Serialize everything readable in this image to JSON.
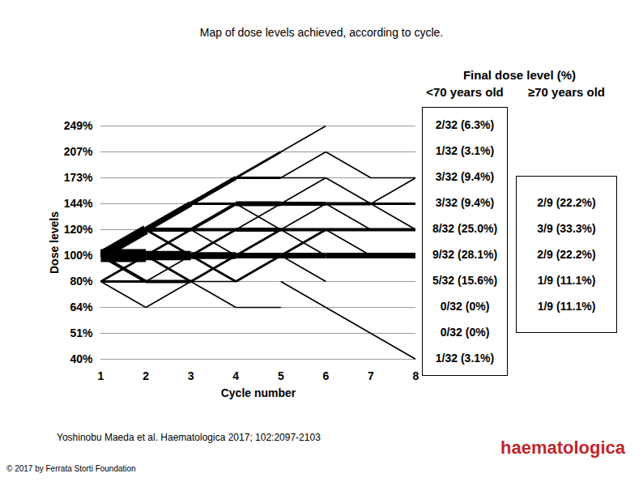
{
  "chart_data": {
    "type": "line",
    "title": "Map of dose levels achieved, according to cycle.",
    "x_label": "Cycle number",
    "y_label": "Dose levels",
    "xlim": [
      1,
      8
    ],
    "xticks": [
      1,
      2,
      3,
      4,
      5,
      6,
      7,
      8
    ],
    "yticks": [
      {
        "value": 249,
        "label": "249%"
      },
      {
        "value": 207,
        "label": "207%"
      },
      {
        "value": 173,
        "label": "173%"
      },
      {
        "value": 144,
        "label": "144%"
      },
      {
        "value": 120,
        "label": "120%"
      },
      {
        "value": 100,
        "label": "100%"
      },
      {
        "value": 80,
        "label": "80%"
      },
      {
        "value": 64,
        "label": "64%"
      },
      {
        "value": 51,
        "label": "51%"
      },
      {
        "value": 40,
        "label": "40%"
      }
    ],
    "grid": true,
    "color": "#000000",
    "transitions": [
      {
        "from_cycle": 1,
        "to_cycle": 2,
        "from": 100,
        "to": 120,
        "n": 10
      },
      {
        "from_cycle": 1,
        "to_cycle": 2,
        "from": 100,
        "to": 100,
        "n": 14
      },
      {
        "from_cycle": 1,
        "to_cycle": 2,
        "from": 100,
        "to": 80,
        "n": 3
      },
      {
        "from_cycle": 1,
        "to_cycle": 2,
        "from": 80,
        "to": 100,
        "n": 2
      },
      {
        "from_cycle": 1,
        "to_cycle": 2,
        "from": 80,
        "to": 80,
        "n": 2
      },
      {
        "from_cycle": 1,
        "to_cycle": 2,
        "from": 80,
        "to": 64,
        "n": 1
      },
      {
        "from_cycle": 2,
        "to_cycle": 3,
        "from": 120,
        "to": 144,
        "n": 6
      },
      {
        "from_cycle": 2,
        "to_cycle": 3,
        "from": 120,
        "to": 120,
        "n": 4
      },
      {
        "from_cycle": 2,
        "to_cycle": 3,
        "from": 120,
        "to": 100,
        "n": 2
      },
      {
        "from_cycle": 2,
        "to_cycle": 3,
        "from": 100,
        "to": 120,
        "n": 2
      },
      {
        "from_cycle": 2,
        "to_cycle": 3,
        "from": 100,
        "to": 100,
        "n": 10
      },
      {
        "from_cycle": 2,
        "to_cycle": 3,
        "from": 100,
        "to": 80,
        "n": 2
      },
      {
        "from_cycle": 2,
        "to_cycle": 3,
        "from": 80,
        "to": 80,
        "n": 3
      },
      {
        "from_cycle": 2,
        "to_cycle": 3,
        "from": 80,
        "to": 100,
        "n": 1
      },
      {
        "from_cycle": 2,
        "to_cycle": 3,
        "from": 64,
        "to": 80,
        "n": 1
      },
      {
        "from_cycle": 3,
        "to_cycle": 4,
        "from": 144,
        "to": 173,
        "n": 4
      },
      {
        "from_cycle": 3,
        "to_cycle": 4,
        "from": 144,
        "to": 144,
        "n": 2
      },
      {
        "from_cycle": 3,
        "to_cycle": 4,
        "from": 120,
        "to": 144,
        "n": 3
      },
      {
        "from_cycle": 3,
        "to_cycle": 4,
        "from": 120,
        "to": 120,
        "n": 3
      },
      {
        "from_cycle": 3,
        "to_cycle": 4,
        "from": 120,
        "to": 100,
        "n": 1
      },
      {
        "from_cycle": 3,
        "to_cycle": 4,
        "from": 100,
        "to": 120,
        "n": 2
      },
      {
        "from_cycle": 3,
        "to_cycle": 4,
        "from": 100,
        "to": 100,
        "n": 7
      },
      {
        "from_cycle": 3,
        "to_cycle": 4,
        "from": 100,
        "to": 80,
        "n": 2
      },
      {
        "from_cycle": 3,
        "to_cycle": 4,
        "from": 80,
        "to": 100,
        "n": 2
      },
      {
        "from_cycle": 3,
        "to_cycle": 4,
        "from": 80,
        "to": 80,
        "n": 1
      },
      {
        "from_cycle": 3,
        "to_cycle": 4,
        "from": 80,
        "to": 64,
        "n": 1
      },
      {
        "from_cycle": 4,
        "to_cycle": 5,
        "from": 173,
        "to": 207,
        "n": 2
      },
      {
        "from_cycle": 4,
        "to_cycle": 5,
        "from": 173,
        "to": 173,
        "n": 2
      },
      {
        "from_cycle": 4,
        "to_cycle": 5,
        "from": 144,
        "to": 144,
        "n": 5
      },
      {
        "from_cycle": 4,
        "to_cycle": 5,
        "from": 144,
        "to": 120,
        "n": 1
      },
      {
        "from_cycle": 4,
        "to_cycle": 5,
        "from": 120,
        "to": 120,
        "n": 4
      },
      {
        "from_cycle": 4,
        "to_cycle": 5,
        "from": 120,
        "to": 144,
        "n": 1
      },
      {
        "from_cycle": 4,
        "to_cycle": 5,
        "from": 100,
        "to": 120,
        "n": 2
      },
      {
        "from_cycle": 4,
        "to_cycle": 5,
        "from": 100,
        "to": 100,
        "n": 6
      },
      {
        "from_cycle": 4,
        "to_cycle": 5,
        "from": 80,
        "to": 100,
        "n": 2
      },
      {
        "from_cycle": 4,
        "to_cycle": 5,
        "from": 64,
        "to": 64,
        "n": 1
      },
      {
        "from_cycle": 5,
        "to_cycle": 6,
        "from": 207,
        "to": 249,
        "n": 1
      },
      {
        "from_cycle": 5,
        "to_cycle": 6,
        "from": 173,
        "to": 207,
        "n": 1
      },
      {
        "from_cycle": 5,
        "to_cycle": 6,
        "from": 173,
        "to": 173,
        "n": 1
      },
      {
        "from_cycle": 5,
        "to_cycle": 6,
        "from": 144,
        "to": 173,
        "n": 1
      },
      {
        "from_cycle": 5,
        "to_cycle": 6,
        "from": 144,
        "to": 144,
        "n": 4
      },
      {
        "from_cycle": 5,
        "to_cycle": 6,
        "from": 120,
        "to": 144,
        "n": 1
      },
      {
        "from_cycle": 5,
        "to_cycle": 6,
        "from": 120,
        "to": 120,
        "n": 3
      },
      {
        "from_cycle": 5,
        "to_cycle": 6,
        "from": 120,
        "to": 100,
        "n": 1
      },
      {
        "from_cycle": 5,
        "to_cycle": 6,
        "from": 100,
        "to": 120,
        "n": 2
      },
      {
        "from_cycle": 5,
        "to_cycle": 6,
        "from": 100,
        "to": 100,
        "n": 6
      },
      {
        "from_cycle": 5,
        "to_cycle": 6,
        "from": 100,
        "to": 80,
        "n": 1
      },
      {
        "from_cycle": 5,
        "to_cycle": 6,
        "from": 80,
        "to": 64,
        "n": 1
      },
      {
        "from_cycle": 6,
        "to_cycle": 7,
        "from": 207,
        "to": 173,
        "n": 1
      },
      {
        "from_cycle": 6,
        "to_cycle": 7,
        "from": 173,
        "to": 144,
        "n": 1
      },
      {
        "from_cycle": 6,
        "to_cycle": 7,
        "from": 144,
        "to": 144,
        "n": 3
      },
      {
        "from_cycle": 6,
        "to_cycle": 7,
        "from": 144,
        "to": 120,
        "n": 1
      },
      {
        "from_cycle": 6,
        "to_cycle": 7,
        "from": 120,
        "to": 120,
        "n": 3
      },
      {
        "from_cycle": 6,
        "to_cycle": 7,
        "from": 120,
        "to": 100,
        "n": 1
      },
      {
        "from_cycle": 6,
        "to_cycle": 7,
        "from": 100,
        "to": 100,
        "n": 6
      },
      {
        "from_cycle": 6,
        "to_cycle": 7,
        "from": 64,
        "to": 51,
        "n": 1
      },
      {
        "from_cycle": 7,
        "to_cycle": 8,
        "from": 173,
        "to": 173,
        "n": 1
      },
      {
        "from_cycle": 7,
        "to_cycle": 8,
        "from": 144,
        "to": 173,
        "n": 1
      },
      {
        "from_cycle": 7,
        "to_cycle": 8,
        "from": 144,
        "to": 144,
        "n": 2
      },
      {
        "from_cycle": 7,
        "to_cycle": 8,
        "from": 144,
        "to": 120,
        "n": 1
      },
      {
        "from_cycle": 7,
        "to_cycle": 8,
        "from": 120,
        "to": 120,
        "n": 3
      },
      {
        "from_cycle": 7,
        "to_cycle": 8,
        "from": 100,
        "to": 100,
        "n": 6
      },
      {
        "from_cycle": 7,
        "to_cycle": 8,
        "from": 51,
        "to": 40,
        "n": 1
      }
    ],
    "final_dose": {
      "title": "Final dose level (%)",
      "groups": [
        {
          "name": "<70 years old",
          "levels": [
            249,
            207,
            173,
            144,
            120,
            100,
            80,
            64,
            51,
            40
          ],
          "labels": [
            "2/32 (6.3%)",
            "1/32 (3.1%)",
            "3/32 (9.4%)",
            "3/32 (9.4%)",
            "8/32 (25.0%)",
            "9/32 (28.1%)",
            "5/32 (15.6%)",
            "0/32 (0%)",
            "0/32 (0%)",
            "1/32 (3.1%)"
          ]
        },
        {
          "name": "≥70 years old",
          "levels": [
            144,
            120,
            100,
            80,
            64
          ],
          "labels": [
            "2/9 (22.2%)",
            "3/9 (33.3%)",
            "2/9 (22.2%)",
            "1/9 (11.1%)",
            "1/9 (11.1%)"
          ]
        }
      ]
    }
  },
  "source": "Yoshinobu Maeda et al. Haematologica 2017; 102:2097-2103",
  "copyright": "© 2017 by Ferrata Storti Foundation",
  "logo": "haematologica"
}
